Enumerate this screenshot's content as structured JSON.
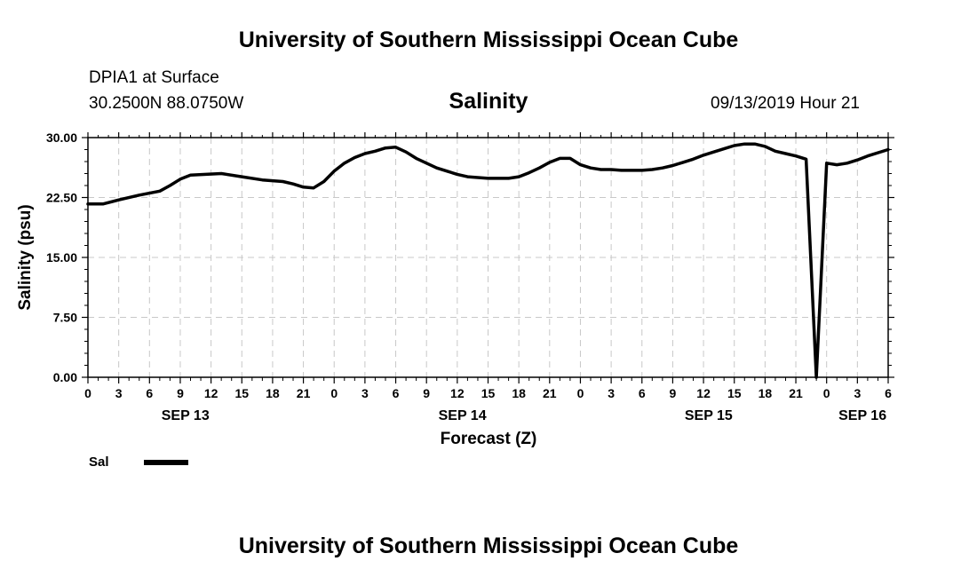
{
  "header": {
    "title_top": "University of Southern Mississippi Ocean Cube",
    "title_bottom": "University of Southern Mississippi Ocean Cube",
    "station": "DPIA1 at Surface",
    "coordinates": "30.2500N 88.0750W",
    "datetime": "09/13/2019 Hour 21"
  },
  "chart_data": {
    "type": "line",
    "title": "Salinity",
    "xlabel": "Forecast (Z)",
    "ylabel": "Salinity (psu)",
    "ylim": [
      0,
      30
    ],
    "xlim": [
      0,
      78
    ],
    "yticks": [
      "0.00",
      "7.50",
      "15.00",
      "22.50",
      "30.00"
    ],
    "ytick_values": [
      0,
      7.5,
      15,
      22.5,
      30
    ],
    "xtick_labels": [
      "0",
      "3",
      "6",
      "9",
      "12",
      "15",
      "18",
      "21",
      "0",
      "3",
      "6",
      "9",
      "12",
      "15",
      "18",
      "21",
      "0",
      "3",
      "6",
      "9",
      "12",
      "15",
      "18",
      "21",
      "0",
      "3",
      "6"
    ],
    "day_labels": [
      {
        "label": "SEP 13",
        "x": 9.5
      },
      {
        "label": "SEP 14",
        "x": 36.5
      },
      {
        "label": "SEP 15",
        "x": 60.5
      },
      {
        "label": "SEP 16",
        "x": 75.5
      }
    ],
    "grid": true,
    "legend": [
      {
        "name": "Sal",
        "color": "#000000"
      }
    ],
    "series": [
      {
        "name": "Sal",
        "color": "#000000",
        "x": [
          0,
          1.5,
          3,
          5,
          7,
          8,
          9,
          10,
          11.5,
          13,
          15,
          17,
          19,
          20,
          21,
          22,
          23,
          24,
          25,
          26,
          27,
          28,
          29,
          30,
          31,
          32,
          33,
          34,
          35,
          36,
          37,
          38,
          39,
          40,
          41,
          42,
          43,
          44,
          45,
          46,
          47,
          48,
          49,
          50,
          51,
          52,
          53,
          54,
          55,
          56,
          57,
          58,
          59,
          60,
          61,
          62,
          63,
          64,
          65,
          66,
          67,
          68,
          69,
          70,
          71,
          72,
          73,
          74,
          75,
          76,
          78
        ],
        "values": [
          21.7,
          21.7,
          22.2,
          22.8,
          23.3,
          24.0,
          24.8,
          25.3,
          25.4,
          25.5,
          25.1,
          24.7,
          24.5,
          24.2,
          23.8,
          23.7,
          24.5,
          25.8,
          26.8,
          27.5,
          28.0,
          28.3,
          28.7,
          28.8,
          28.2,
          27.4,
          26.8,
          26.2,
          25.8,
          25.4,
          25.1,
          25.0,
          24.9,
          24.9,
          24.9,
          25.1,
          25.6,
          26.2,
          26.9,
          27.4,
          27.4,
          26.6,
          26.2,
          26.0,
          26.0,
          25.9,
          25.9,
          25.9,
          26.0,
          26.2,
          26.5,
          26.9,
          27.3,
          27.8,
          28.2,
          28.6,
          29.0,
          29.2,
          29.2,
          28.9,
          28.3,
          28.0,
          27.7,
          27.3,
          0.0,
          26.8,
          26.6,
          26.8,
          27.2,
          27.7,
          28.5
        ]
      }
    ]
  }
}
